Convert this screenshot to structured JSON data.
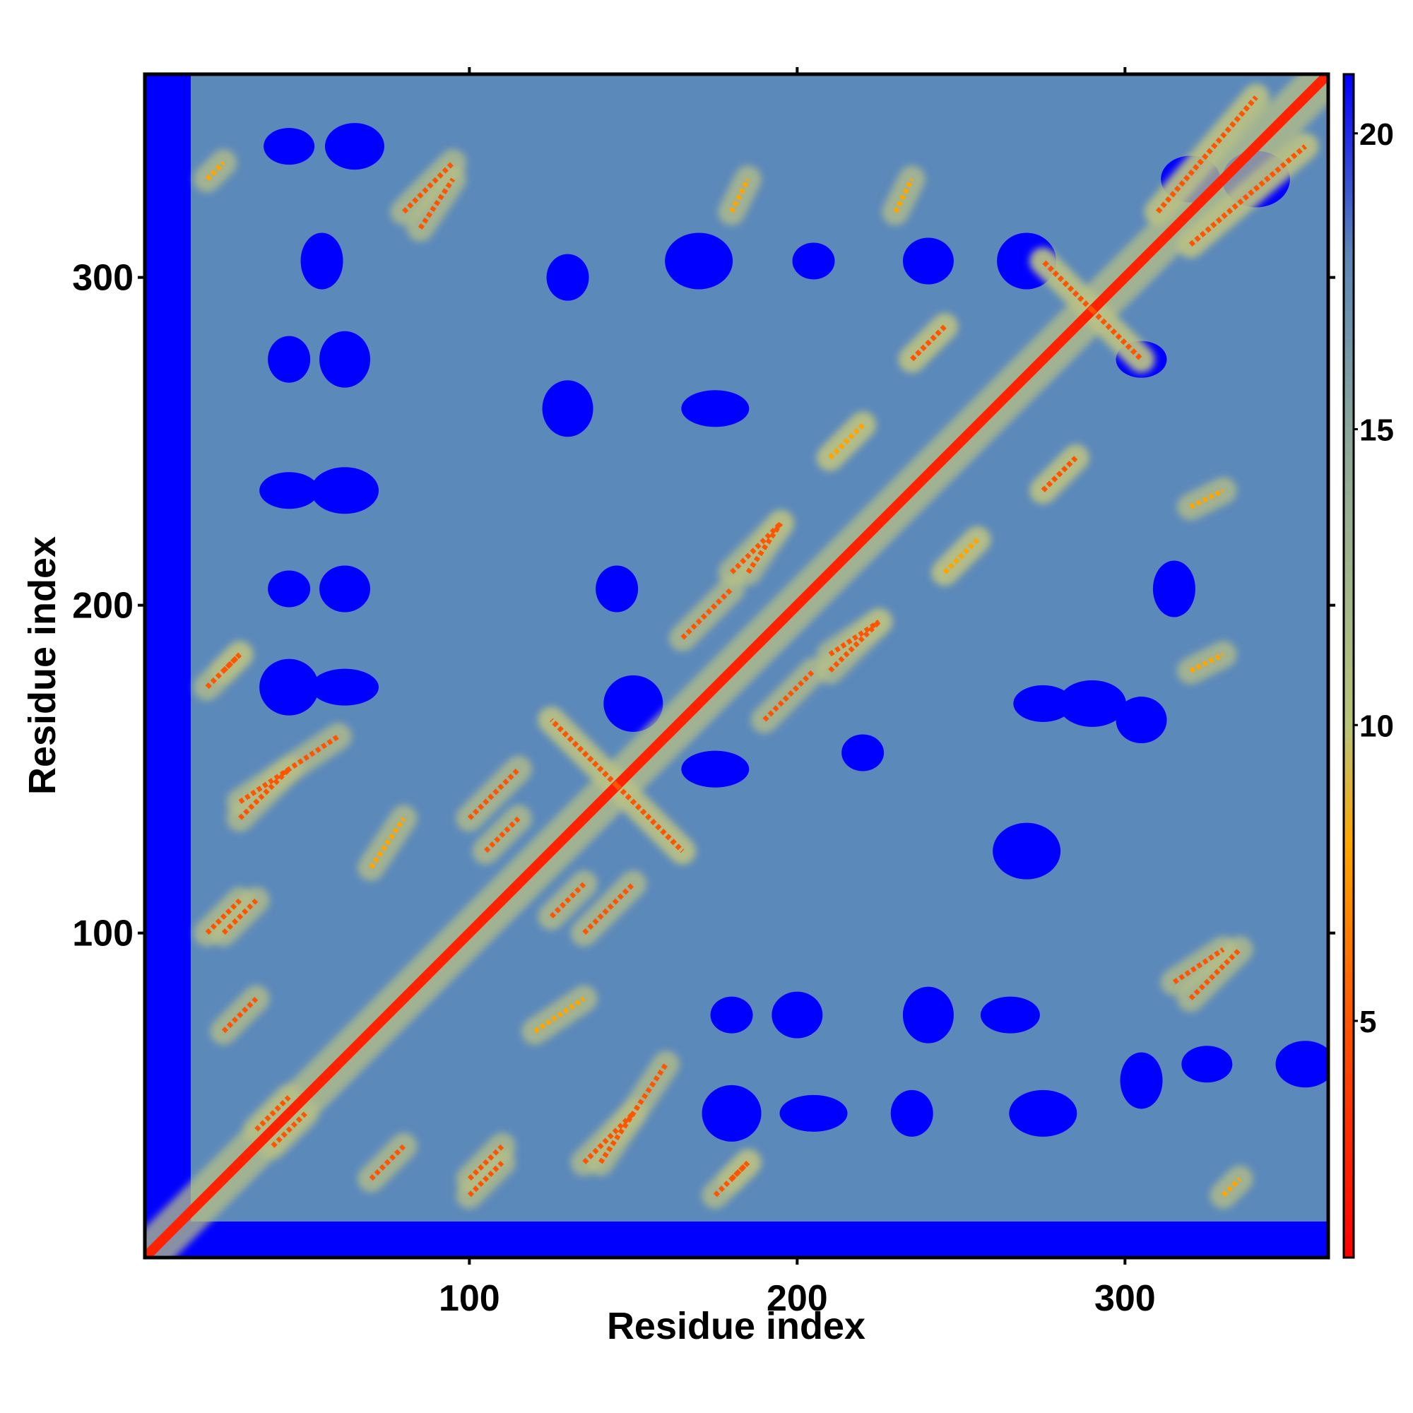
{
  "chart_data": {
    "type": "heatmap",
    "title": "",
    "xlabel": "Residue index",
    "ylabel": "Residue index",
    "xlim": [
      1,
      362
    ],
    "ylim": [
      1,
      362
    ],
    "x_ticks": [
      "100",
      "200",
      "300"
    ],
    "x_tick_values": [
      100,
      200,
      300
    ],
    "y_ticks": [
      "100",
      "200",
      "300"
    ],
    "y_tick_values": [
      100,
      200,
      300
    ],
    "colorbar": {
      "ticks": [
        "5",
        "10",
        "15",
        "20"
      ],
      "tick_values": [
        5,
        10,
        15,
        20
      ],
      "range": [
        1,
        21
      ],
      "stops": [
        {
          "value": 1,
          "color": "#ff0000"
        },
        {
          "value": 5,
          "color": "#ff5500"
        },
        {
          "value": 8,
          "color": "#ffa500"
        },
        {
          "value": 10,
          "color": "#b8c47a"
        },
        {
          "value": 15,
          "color": "#8aa69a"
        },
        {
          "value": 18,
          "color": "#5a86b8"
        },
        {
          "value": 21,
          "color": "#0000ff"
        }
      ]
    },
    "colors": {
      "close": "#ff2200",
      "near": "#ffa500",
      "mid": "#b9c186",
      "background": "#5b89ba",
      "far": "#0000ff"
    },
    "description_of_values": "pairwise residue distance map, symmetric about the diagonal (residue i vs residue j)",
    "contact_features": [
      {
        "kind": "diagonal",
        "from": 1,
        "to": 362,
        "value": 2
      },
      {
        "kind": "line",
        "x1": 145,
        "y1": 145,
        "x2": 125,
        "y2": 165,
        "value": 6
      },
      {
        "kind": "line",
        "x1": 145,
        "y1": 145,
        "x2": 165,
        "y2": 125,
        "value": 6
      },
      {
        "kind": "line",
        "x1": 290,
        "y1": 290,
        "x2": 275,
        "y2": 305,
        "value": 6
      },
      {
        "kind": "line",
        "x1": 290,
        "y1": 290,
        "x2": 305,
        "y2": 275,
        "value": 6
      },
      {
        "kind": "line",
        "x1": 30,
        "y1": 140,
        "x2": 60,
        "y2": 160,
        "value": 7
      },
      {
        "kind": "line",
        "x1": 25,
        "y1": 100,
        "x2": 35,
        "y2": 110,
        "value": 7
      },
      {
        "kind": "line",
        "x1": 25,
        "y1": 180,
        "x2": 30,
        "y2": 185,
        "value": 7
      },
      {
        "kind": "line",
        "x1": 80,
        "y1": 320,
        "x2": 95,
        "y2": 335,
        "value": 7
      },
      {
        "kind": "line",
        "x1": 100,
        "y1": 20,
        "x2": 110,
        "y2": 30,
        "value": 7
      },
      {
        "kind": "line",
        "x1": 135,
        "y1": 30,
        "x2": 150,
        "y2": 45,
        "value": 7
      },
      {
        "kind": "line",
        "x1": 175,
        "y1": 20,
        "x2": 185,
        "y2": 30,
        "value": 7
      },
      {
        "kind": "line",
        "x1": 105,
        "y1": 125,
        "x2": 115,
        "y2": 135,
        "value": 7
      },
      {
        "kind": "line",
        "x1": 135,
        "y1": 100,
        "x2": 150,
        "y2": 115,
        "value": 7
      },
      {
        "kind": "line",
        "x1": 180,
        "y1": 210,
        "x2": 195,
        "y2": 225,
        "value": 7
      },
      {
        "kind": "line",
        "x1": 190,
        "y1": 165,
        "x2": 205,
        "y2": 180,
        "value": 7
      },
      {
        "kind": "line",
        "x1": 210,
        "y1": 185,
        "x2": 225,
        "y2": 195,
        "value": 7
      },
      {
        "kind": "line",
        "x1": 235,
        "y1": 275,
        "x2": 245,
        "y2": 285,
        "value": 7
      },
      {
        "kind": "line",
        "x1": 275,
        "y1": 235,
        "x2": 285,
        "y2": 245,
        "value": 7
      },
      {
        "kind": "line",
        "x1": 310,
        "y1": 320,
        "x2": 340,
        "y2": 355,
        "value": 7
      },
      {
        "kind": "line",
        "x1": 320,
        "y1": 310,
        "x2": 355,
        "y2": 340,
        "value": 7
      },
      {
        "kind": "line",
        "x1": 315,
        "y1": 85,
        "x2": 330,
        "y2": 95,
        "value": 7
      },
      {
        "kind": "line",
        "x1": 320,
        "y1": 180,
        "x2": 330,
        "y2": 185,
        "value": 8
      },
      {
        "kind": "line",
        "x1": 320,
        "y1": 230,
        "x2": 330,
        "y2": 235,
        "value": 8
      },
      {
        "kind": "line",
        "x1": 35,
        "y1": 40,
        "x2": 45,
        "y2": 50,
        "value": 6
      },
      {
        "kind": "line",
        "x1": 70,
        "y1": 25,
        "x2": 80,
        "y2": 35,
        "value": 7
      },
      {
        "kind": "line",
        "x1": 20,
        "y1": 330,
        "x2": 25,
        "y2": 335,
        "value": 9
      },
      {
        "kind": "line",
        "x1": 120,
        "y1": 70,
        "x2": 135,
        "y2": 80,
        "value": 9
      },
      {
        "kind": "line",
        "x1": 210,
        "y1": 245,
        "x2": 220,
        "y2": 255,
        "value": 8
      },
      {
        "kind": "line",
        "x1": 245,
        "y1": 210,
        "x2": 255,
        "y2": 220,
        "value": 8
      }
    ],
    "far_blobs": [
      {
        "x": 45,
        "y": 205
      },
      {
        "x": 62,
        "y": 205
      },
      {
        "x": 45,
        "y": 175
      },
      {
        "x": 62,
        "y": 175
      },
      {
        "x": 45,
        "y": 275
      },
      {
        "x": 62,
        "y": 275
      },
      {
        "x": 45,
        "y": 235
      },
      {
        "x": 62,
        "y": 235
      },
      {
        "x": 55,
        "y": 305
      },
      {
        "x": 45,
        "y": 340
      },
      {
        "x": 65,
        "y": 340
      },
      {
        "x": 170,
        "y": 305
      },
      {
        "x": 205,
        "y": 305
      },
      {
        "x": 240,
        "y": 305
      },
      {
        "x": 270,
        "y": 305
      },
      {
        "x": 175,
        "y": 260
      },
      {
        "x": 130,
        "y": 300
      },
      {
        "x": 130,
        "y": 260
      },
      {
        "x": 275,
        "y": 170
      },
      {
        "x": 290,
        "y": 170
      },
      {
        "x": 315,
        "y": 205
      },
      {
        "x": 305,
        "y": 275
      },
      {
        "x": 320,
        "y": 330
      },
      {
        "x": 340,
        "y": 330
      },
      {
        "x": 180,
        "y": 75
      },
      {
        "x": 200,
        "y": 75
      },
      {
        "x": 180,
        "y": 45
      },
      {
        "x": 205,
        "y": 45
      },
      {
        "x": 235,
        "y": 45
      },
      {
        "x": 240,
        "y": 75
      },
      {
        "x": 265,
        "y": 75
      },
      {
        "x": 275,
        "y": 45
      },
      {
        "x": 305,
        "y": 55
      },
      {
        "x": 325,
        "y": 60
      },
      {
        "x": 355,
        "y": 60
      },
      {
        "x": 270,
        "y": 125
      },
      {
        "x": 220,
        "y": 155
      },
      {
        "x": 305,
        "y": 165
      },
      {
        "x": 150,
        "y": 170
      },
      {
        "x": 175,
        "y": 150
      },
      {
        "x": 145,
        "y": 205
      }
    ]
  }
}
